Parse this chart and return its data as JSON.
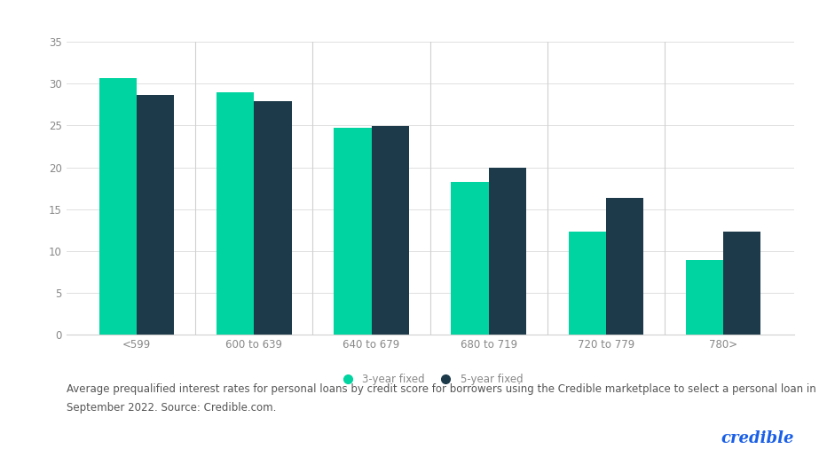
{
  "categories": [
    "<599",
    "600 to 639",
    "640 to 679",
    "680 to 719",
    "720 to 779",
    "780>"
  ],
  "three_year": [
    30.7,
    29.0,
    24.7,
    18.3,
    12.3,
    8.9
  ],
  "five_year": [
    28.7,
    27.9,
    24.9,
    20.0,
    16.4,
    12.3
  ],
  "color_3year": "#00D4A0",
  "color_5year": "#1C3A4A",
  "ylim": [
    0,
    35
  ],
  "yticks": [
    0,
    5,
    10,
    15,
    20,
    25,
    30,
    35
  ],
  "legend_label_3year": "3-year fixed",
  "legend_label_5year": "5-year fixed",
  "caption_line1": "Average prequalified interest rates for personal loans by credit score for borrowers using the Credible marketplace to select a personal loan in",
  "caption_line2": "September 2022. Source: Credible.com.",
  "credible_text": "credible",
  "credible_color": "#1A5FE8",
  "background_color": "#ffffff",
  "bar_width": 0.32,
  "caption_fontsize": 8.5,
  "legend_fontsize": 8.5,
  "tick_fontsize": 8.5,
  "credible_fontsize": 13,
  "grid_color": "#e0e0e0",
  "tick_color": "#888888",
  "separator_color": "#d0d0d0"
}
